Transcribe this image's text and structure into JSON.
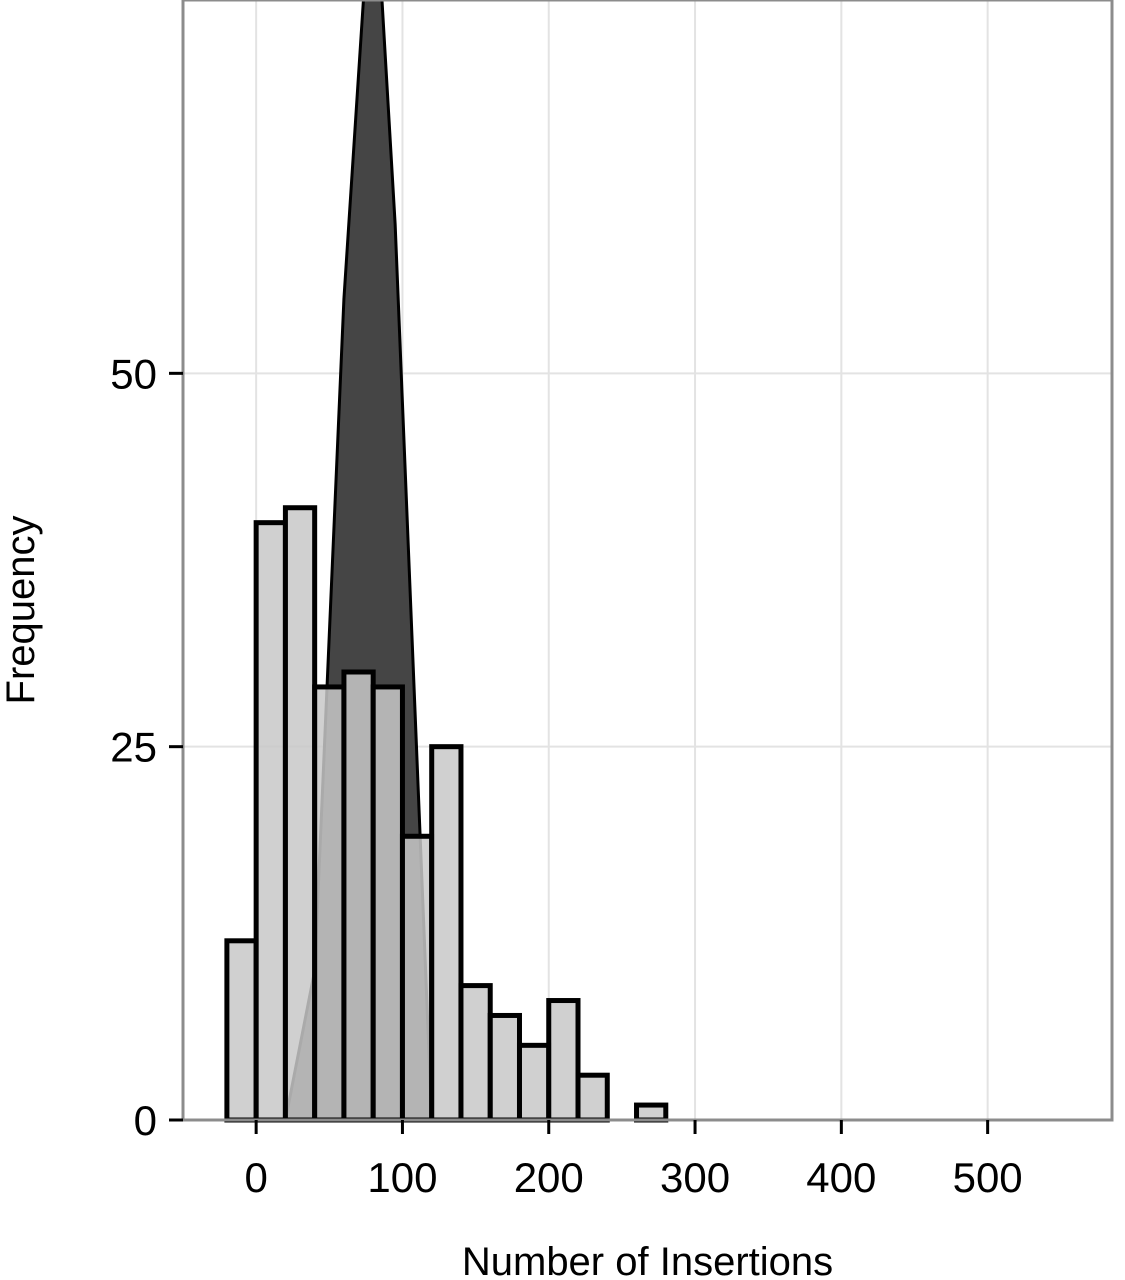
{
  "chart_data": {
    "type": "histogram",
    "title": "",
    "xlabel": "Number of Insertions",
    "ylabel": "Frequency",
    "xlim": [
      -50,
      585
    ],
    "ylim": [
      0,
      75
    ],
    "xticks": [
      0,
      100,
      200,
      300,
      400,
      500
    ],
    "yticks": [
      0,
      25,
      50
    ],
    "grid": true,
    "legend": "none",
    "colors": {
      "histogram_fill": "#c8c8c8",
      "overlay_fill": "#454545",
      "outline": "#000000",
      "grid": "#e3e3e3",
      "frame": "#8c8c8c"
    },
    "series": [
      {
        "kind": "histogram",
        "bin_width": 20,
        "bins": [
          {
            "x0": -20,
            "x1": 0,
            "count": 12
          },
          {
            "x0": 0,
            "x1": 20,
            "count": 40
          },
          {
            "x0": 20,
            "x1": 40,
            "count": 41
          },
          {
            "x0": 40,
            "x1": 60,
            "count": 29
          },
          {
            "x0": 60,
            "x1": 80,
            "count": 30
          },
          {
            "x0": 80,
            "x1": 100,
            "count": 29
          },
          {
            "x0": 100,
            "x1": 120,
            "count": 19
          },
          {
            "x0": 120,
            "x1": 140,
            "count": 25
          },
          {
            "x0": 140,
            "x1": 160,
            "count": 9
          },
          {
            "x0": 160,
            "x1": 180,
            "count": 7
          },
          {
            "x0": 180,
            "x1": 200,
            "count": 5
          },
          {
            "x0": 200,
            "x1": 220,
            "count": 8
          },
          {
            "x0": 220,
            "x1": 240,
            "count": 3
          },
          {
            "x0": 240,
            "x1": 260,
            "count": 0
          },
          {
            "x0": 260,
            "x1": 280,
            "count": 1
          },
          {
            "x0": 280,
            "x1": 300,
            "count": 0
          },
          {
            "x0": 300,
            "x1": 320,
            "count": 0
          },
          {
            "x0": 320,
            "x1": 340,
            "count": 0
          },
          {
            "x0": 340,
            "x1": 360,
            "count": 0
          },
          {
            "x0": 360,
            "x1": 380,
            "count": 0
          },
          {
            "x0": 380,
            "x1": 400,
            "count": 0
          },
          {
            "x0": 400,
            "x1": 420,
            "count": 0
          },
          {
            "x0": 420,
            "x1": 440,
            "count": 0
          },
          {
            "x0": 440,
            "x1": 460,
            "count": 0
          },
          {
            "x0": 460,
            "x1": 480,
            "count": 0
          },
          {
            "x0": 480,
            "x1": 500,
            "count": 0
          },
          {
            "x0": 500,
            "x1": 520,
            "count": 0
          },
          {
            "x0": 520,
            "x1": 540,
            "count": 0
          },
          {
            "x0": 540,
            "x1": 560,
            "count": 0
          },
          {
            "x0": 560,
            "x1": 580,
            "count": 0
          }
        ]
      },
      {
        "kind": "density",
        "x": [
          20,
          40,
          60,
          80,
          95,
          120
        ],
        "y": [
          0,
          10,
          55,
          85,
          60,
          0
        ]
      }
    ]
  }
}
